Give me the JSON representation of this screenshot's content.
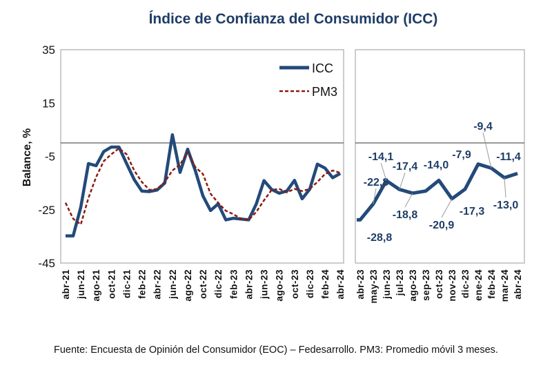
{
  "chart_data": [
    {
      "type": "line",
      "title": "Índice de Confianza del Consumidor (ICC)",
      "ylabel": "Balance, %",
      "ylim": [
        -45,
        35
      ],
      "yticks": [
        35,
        15,
        -5,
        -25,
        -45
      ],
      "reference_line": 0,
      "legend": {
        "placement": "top-right",
        "entries": [
          "ICC",
          "PM3"
        ]
      },
      "x": [
        "abr-21",
        "may-21",
        "jun-21",
        "jul-21",
        "ago-21",
        "sep-21",
        "oct-21",
        "nov-21",
        "dic-21",
        "ene-22",
        "feb-22",
        "mar-22",
        "abr-22",
        "may-22",
        "jun-22",
        "jul-22",
        "ago-22",
        "sep-22",
        "oct-22",
        "nov-22",
        "dic-22",
        "ene-23",
        "feb-23",
        "mar-23",
        "abr-23",
        "may-23",
        "jun-23",
        "jul-23",
        "ago-23",
        "sep-23",
        "oct-23",
        "nov-23",
        "dic-23",
        "ene-24",
        "feb-24",
        "mar-24",
        "abr-24"
      ],
      "xtick_labels": [
        "abr-21",
        "jun-21",
        "ago-21",
        "oct-21",
        "dic-21",
        "feb-22",
        "abr-22",
        "jun-22",
        "ago-22",
        "oct-22",
        "dic-22",
        "feb-23",
        "abr-23",
        "jun-23",
        "ago-23",
        "oct-23",
        "dic-23",
        "feb-24",
        "abr-24"
      ],
      "series": [
        {
          "name": "ICC",
          "color": "#234a7a",
          "style": "solid",
          "values": [
            -34.8,
            -34.8,
            -24,
            -7.7,
            -8.5,
            -3.2,
            -1.5,
            -1.5,
            -7.7,
            -13.7,
            -18,
            -18.2,
            -17.6,
            -15,
            3.1,
            -11,
            -2.3,
            -10.3,
            -19.8,
            -25.3,
            -22.8,
            -28.8,
            -28.2,
            -28.5,
            -28.8,
            -22.8,
            -14.1,
            -17.4,
            -18.8,
            -18,
            -14.0,
            -20.9,
            -17.3,
            -7.9,
            -9.4,
            -13.0,
            -11.4
          ]
        },
        {
          "name": "PM3",
          "color": "#8b1a10",
          "style": "dashed",
          "values": [
            -22.4,
            -28.4,
            -30.5,
            -20.6,
            -12.8,
            -6.8,
            -4.2,
            -2,
            -4.2,
            -10.3,
            -14.6,
            -17.6,
            -17.2,
            -14.6,
            -10.3,
            -8.1,
            -3.4,
            -9,
            -11.6,
            -19,
            -22.4,
            -25.4,
            -26.7,
            -28.4,
            -28.8,
            -25.8,
            -21.5,
            -17.6,
            -17.2,
            -18.5,
            -17.2,
            -18,
            -17.2,
            -14.6,
            -11.6,
            -10.3,
            -11.2
          ]
        }
      ]
    },
    {
      "type": "line",
      "ylim": [
        -45,
        35
      ],
      "reference_line": 0,
      "x": [
        "abr-23",
        "may-23",
        "jun-23",
        "jul-23",
        "ago-23",
        "sep-23",
        "oct-23",
        "nov-23",
        "dic-23",
        "ene-24",
        "feb-24",
        "mar-24",
        "abr-24"
      ],
      "series": [
        {
          "name": "ICC",
          "color": "#234a7a",
          "values": [
            -28.8,
            -22.8,
            -14.1,
            -17.4,
            -18.8,
            -18.0,
            -14.0,
            -20.9,
            -17.3,
            -7.9,
            -9.4,
            -13.0,
            -11.4
          ]
        }
      ],
      "data_labels": [
        "-28,8",
        "-22,8",
        "-14,1",
        "-17,4",
        "-18,8",
        "",
        "-14,0",
        "-20,9",
        "-17,3",
        "-7,9",
        "-9,4",
        "-13,0",
        "-11,4"
      ]
    }
  ],
  "source": "Fuente: Encuesta de Opinión del Consumidor (EOC) – Fedesarrollo. PM3: Promedio móvil 3 meses."
}
